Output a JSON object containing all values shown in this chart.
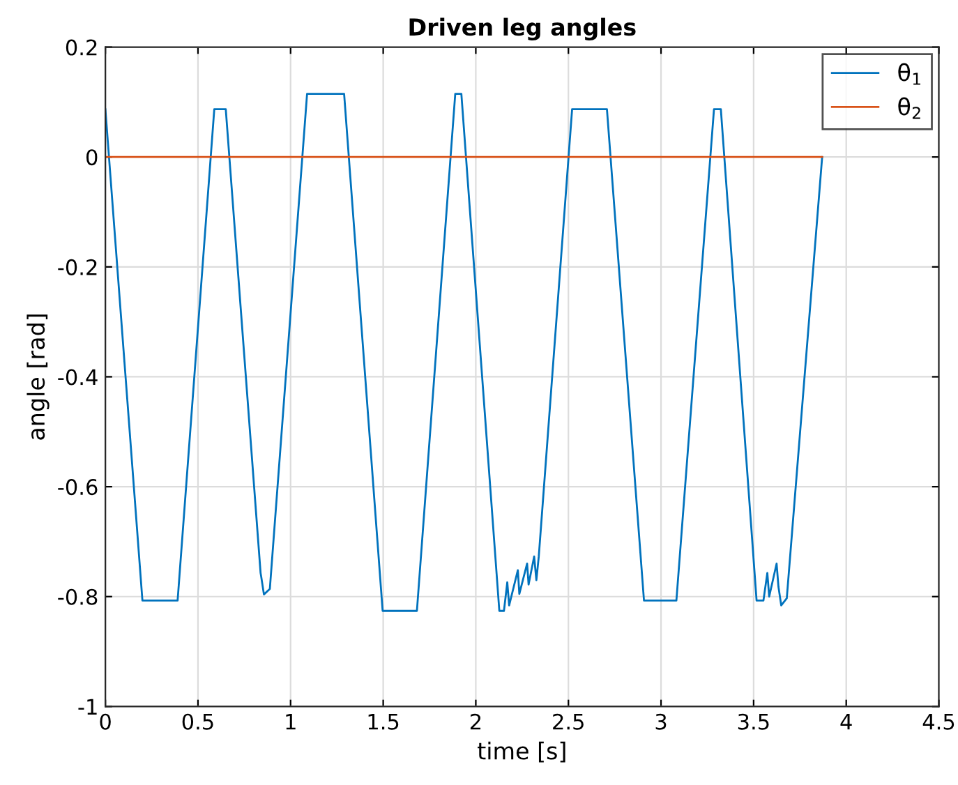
{
  "chart_data": {
    "type": "line",
    "title": "Driven leg angles",
    "xlabel": "time [s]",
    "ylabel": "angle [rad]",
    "xlim": [
      0,
      4.5
    ],
    "xticks": [
      0,
      0.5,
      1,
      1.5,
      2,
      2.5,
      3,
      3.5,
      4,
      4.5
    ],
    "ylim": [
      -1,
      0.2
    ],
    "yticks": [
      -1,
      -0.8,
      -0.6,
      -0.4,
      -0.2,
      0,
      0.2
    ],
    "grid": true,
    "legend": "top right",
    "line_style": "solid",
    "marker": "none",
    "series": [
      {
        "name": "θ$_{1}$",
        "color": "#0072bd",
        "x": [
          0,
          0.2,
          0.39,
          0.588,
          0.65,
          0.838,
          0.842,
          0.856,
          0.888,
          1.089,
          1.289,
          1.497,
          1.682,
          1.889,
          1.922,
          2.127,
          2.152,
          2.17,
          2.18,
          2.227,
          2.235,
          2.277,
          2.285,
          2.315,
          2.327,
          2.34,
          2.52,
          2.708,
          2.908,
          3.083,
          3.286,
          3.323,
          3.516,
          3.553,
          3.574,
          3.584,
          3.624,
          3.634,
          3.649,
          3.679,
          3.87
        ],
        "values": [
          0.087,
          -0.807,
          -0.807,
          0.087,
          0.087,
          -0.757,
          -0.765,
          -0.796,
          -0.786,
          0.115,
          0.115,
          -0.826,
          -0.826,
          0.115,
          0.115,
          -0.826,
          -0.826,
          -0.774,
          -0.816,
          -0.752,
          -0.795,
          -0.74,
          -0.778,
          -0.727,
          -0.77,
          -0.727,
          0.087,
          0.087,
          -0.807,
          -0.807,
          0.087,
          0.087,
          -0.807,
          -0.807,
          -0.757,
          -0.8,
          -0.74,
          -0.782,
          -0.816,
          -0.803,
          0.0
        ]
      },
      {
        "name": "θ$_{2}$",
        "color": "#d95319",
        "x": [
          0,
          3.87
        ],
        "values": [
          0,
          0
        ]
      }
    ]
  }
}
